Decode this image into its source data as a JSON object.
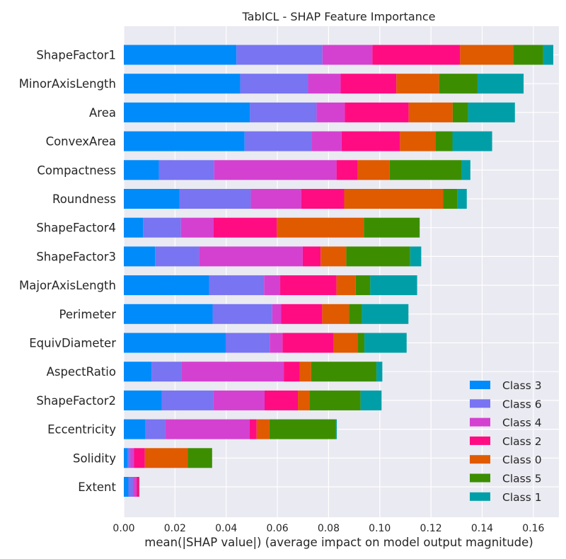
{
  "chart_data": {
    "type": "bar",
    "orientation": "horizontal",
    "stacked": true,
    "title": "TabICL - SHAP Feature Importance",
    "xlabel": "mean(|SHAP value|) (average impact on model output magnitude)",
    "ylabel": "",
    "xlim": [
      0,
      0.17
    ],
    "xticks": [
      "0.00",
      "0.02",
      "0.04",
      "0.06",
      "0.08",
      "0.10",
      "0.12",
      "0.14",
      "0.16"
    ],
    "grid": true,
    "legend_position": "lower-right",
    "categories": [
      "ShapeFactor1",
      "MinorAxisLength",
      "Area",
      "ConvexArea",
      "Compactness",
      "Roundness",
      "ShapeFactor4",
      "ShapeFactor3",
      "MajorAxisLength",
      "Perimeter",
      "EquivDiameter",
      "AspectRatio",
      "ShapeFactor2",
      "Eccentricity",
      "Solidity",
      "Extent"
    ],
    "series": [
      {
        "name": "Class 3",
        "color": "#008bfb",
        "values": [
          0.044,
          0.0455,
          0.0493,
          0.0472,
          0.0137,
          0.0218,
          0.0075,
          0.0122,
          0.0333,
          0.0347,
          0.0398,
          0.0108,
          0.0148,
          0.0085,
          0.0015,
          0.0018
        ]
      },
      {
        "name": "Class 6",
        "color": "#7874f2",
        "values": [
          0.0336,
          0.0265,
          0.026,
          0.0262,
          0.0216,
          0.0278,
          0.0148,
          0.0172,
          0.0215,
          0.0233,
          0.0172,
          0.0117,
          0.0202,
          0.0077,
          0.001,
          0.0018
        ]
      },
      {
        "name": "Class 4",
        "color": "#d441d0",
        "values": [
          0.0195,
          0.0127,
          0.011,
          0.0117,
          0.0478,
          0.0197,
          0.0128,
          0.0405,
          0.0063,
          0.0035,
          0.005,
          0.04,
          0.02,
          0.033,
          0.0015,
          0.0014
        ]
      },
      {
        "name": "Class 2",
        "color": "#ff0c83",
        "values": [
          0.0343,
          0.0218,
          0.025,
          0.0228,
          0.0083,
          0.0168,
          0.0247,
          0.007,
          0.022,
          0.016,
          0.02,
          0.0062,
          0.013,
          0.0027,
          0.0042,
          0.001
        ]
      },
      {
        "name": "Class 0",
        "color": "#e05a00",
        "values": [
          0.0207,
          0.0167,
          0.0172,
          0.014,
          0.0125,
          0.0387,
          0.034,
          0.01,
          0.0075,
          0.0105,
          0.0095,
          0.0045,
          0.0045,
          0.005,
          0.0168,
          0.0
        ]
      },
      {
        "name": "Class 5",
        "color": "#3c8e00",
        "values": [
          0.0117,
          0.015,
          0.006,
          0.0065,
          0.0282,
          0.0055,
          0.0218,
          0.025,
          0.0057,
          0.005,
          0.0025,
          0.0255,
          0.02,
          0.026,
          0.0095,
          0.0001
        ]
      },
      {
        "name": "Class 1",
        "color": "#009fa8",
        "values": [
          0.004,
          0.018,
          0.0183,
          0.0155,
          0.0033,
          0.0037,
          0.0,
          0.0043,
          0.0183,
          0.0182,
          0.0165,
          0.0023,
          0.0082,
          0.0003,
          0.0,
          0.0
        ]
      }
    ]
  }
}
